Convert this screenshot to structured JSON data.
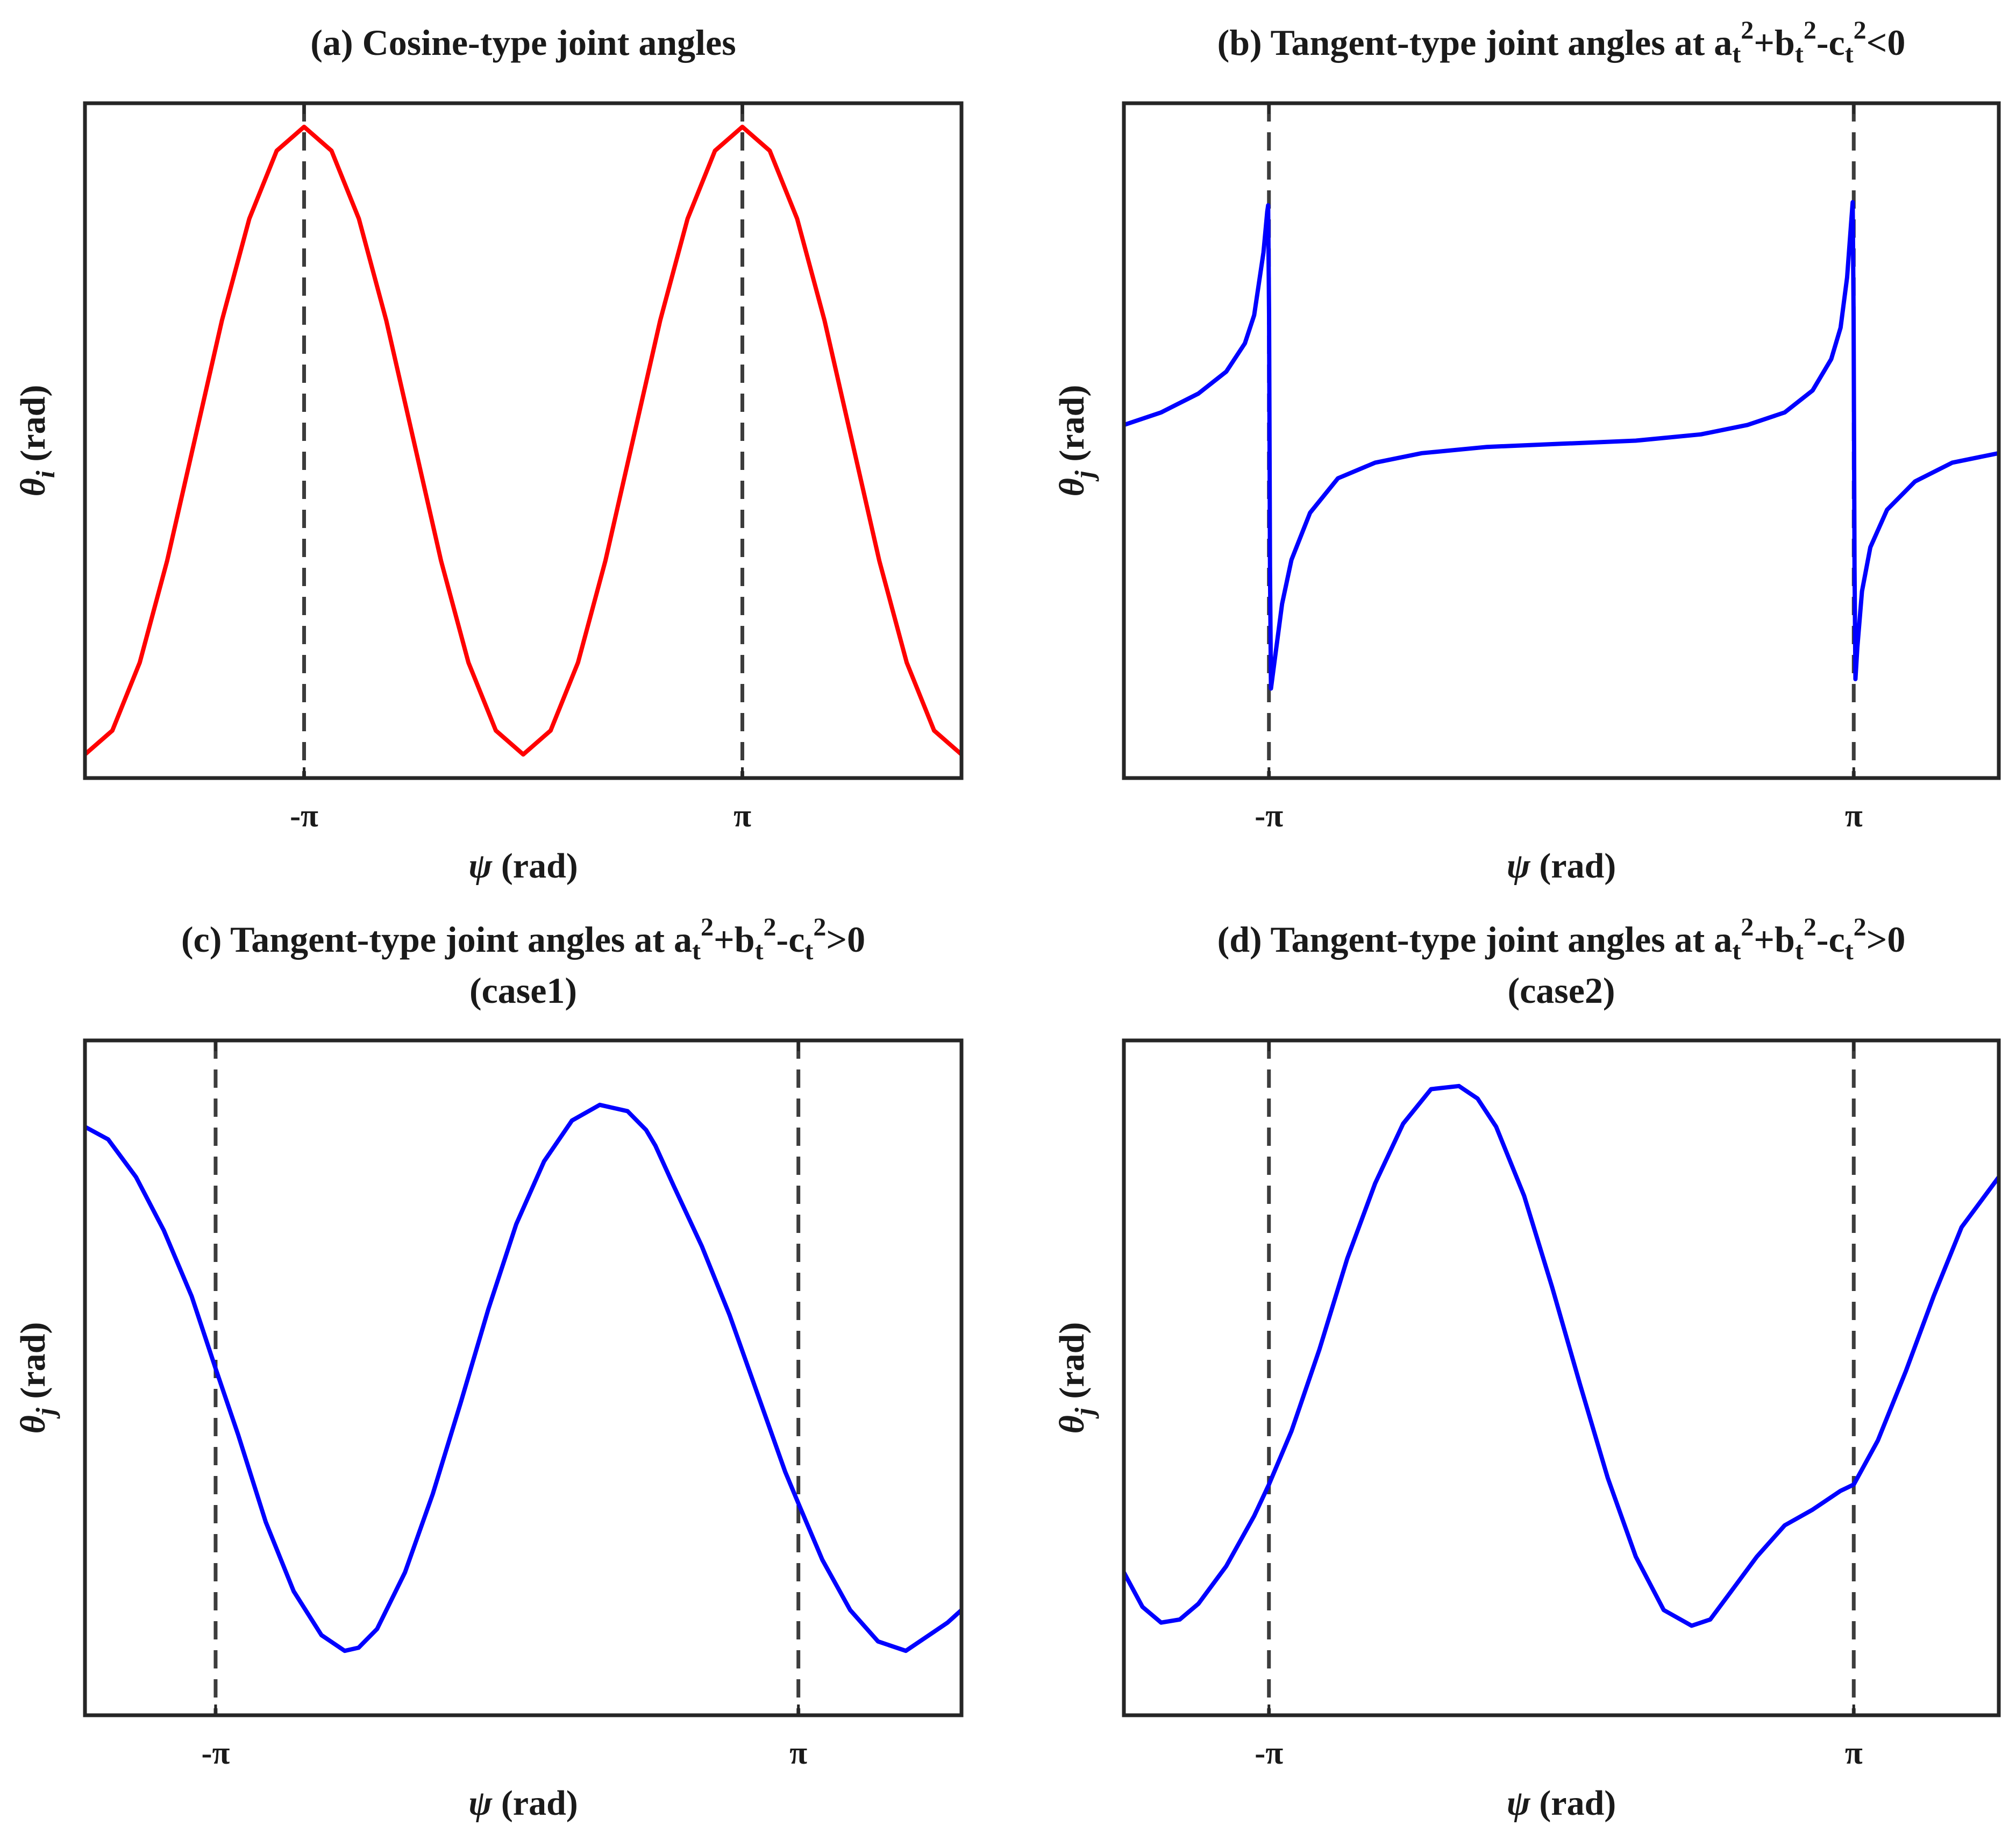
{
  "figure": {
    "background": "#ffffff",
    "frame_color": "#262626",
    "dash_color": "#3c3c3c"
  },
  "chart_data": [
    {
      "id": "a",
      "type": "line",
      "title": "(a) Cosine-type joint angles",
      "title_line2": "",
      "xlabel_symbol": "ψ",
      "xlabel_unit": " (rad)",
      "ylabel_symbol": "θ",
      "ylabel_sub": "i",
      "ylabel_unit": " (rad)",
      "x_ticks": [
        {
          "value": -3.1416,
          "label": "-π"
        },
        {
          "value": 3.1416,
          "label": "π"
        }
      ],
      "y_ticks": [],
      "xlim": [
        -6.2832,
        6.2832
      ],
      "ylim": [
        -1,
        1
      ],
      "grid": false,
      "legend": "none",
      "vlines": [
        -3.1416,
        3.1416
      ],
      "series": [
        {
          "color": "#ff0000",
          "x": [
            -6.2832,
            -5.8905,
            -5.4978,
            -5.1051,
            -4.7124,
            -4.3197,
            -3.927,
            -3.5343,
            -3.1416,
            -2.7489,
            -2.3562,
            -1.9635,
            -1.5708,
            -1.1781,
            -0.7854,
            -0.3927,
            0,
            0.3927,
            0.7854,
            1.1781,
            1.5708,
            1.9635,
            2.3562,
            2.7489,
            3.1416,
            3.5343,
            3.927,
            4.3197,
            4.7124,
            5.1051,
            5.4978,
            5.8905,
            6.2832
          ],
          "y": [
            -1,
            -0.924,
            -0.707,
            -0.383,
            0,
            0.383,
            0.707,
            0.924,
            1,
            0.924,
            0.707,
            0.383,
            0,
            -0.383,
            -0.707,
            -0.924,
            -1,
            -0.924,
            -0.707,
            -0.383,
            0,
            0.383,
            0.707,
            0.924,
            1,
            0.924,
            0.707,
            0.383,
            0,
            -0.383,
            -0.707,
            -0.924,
            -1
          ]
        }
      ]
    },
    {
      "id": "b",
      "type": "line",
      "title": "(b) Tangent-type joint angles at a",
      "title_parts": [
        "t",
        "2",
        "+b",
        "t",
        "2",
        "-c",
        "t",
        "2",
        "<0"
      ],
      "title_line2": "",
      "xlabel_symbol": "ψ",
      "xlabel_unit": " (rad)",
      "ylabel_symbol": "θ",
      "ylabel_sub": "j",
      "ylabel_unit": " (rad)",
      "x_ticks": [
        {
          "value": -3.1416,
          "label": "-π"
        },
        {
          "value": 3.1416,
          "label": "π"
        }
      ],
      "y_ticks": [],
      "xlim": [
        -4.7,
        4.7
      ],
      "ylim": [
        -1,
        1
      ],
      "grid": false,
      "legend": "none",
      "vlines": [
        -3.1416,
        3.1416
      ],
      "series": [
        {
          "color": "#0000ff",
          "x": [
            -4.7,
            -4.3,
            -3.9,
            -3.6,
            -3.4,
            -3.3,
            -3.2,
            -3.16,
            -3.15,
            -3.14,
            -3.13,
            -3.12,
            -3.08,
            -3.0,
            -2.9,
            -2.7,
            -2.4,
            -2.0,
            -1.5,
            -0.8,
            0,
            0.8,
            1.5,
            2.0,
            2.4,
            2.7,
            2.9,
            3.0,
            3.07,
            3.11,
            3.13,
            3.14,
            3.15,
            3.16,
            3.18,
            3.23,
            3.32,
            3.5,
            3.8,
            4.2,
            4.7
          ],
          "y": [
            0.05,
            0.09,
            0.15,
            0.22,
            0.31,
            0.4,
            0.6,
            0.73,
            0.75,
            0.4,
            -0.4,
            -0.79,
            -0.7,
            -0.52,
            -0.38,
            -0.23,
            -0.12,
            -0.07,
            -0.04,
            -0.02,
            -0.01,
            0.0,
            0.02,
            0.05,
            0.09,
            0.16,
            0.26,
            0.36,
            0.52,
            0.68,
            0.76,
            0.4,
            -0.4,
            -0.76,
            -0.66,
            -0.48,
            -0.34,
            -0.22,
            -0.13,
            -0.07,
            -0.04
          ]
        }
      ]
    },
    {
      "id": "c",
      "type": "line",
      "title": "(c) Tangent-type joint angles at a",
      "title_parts": [
        "t",
        "2",
        "+b",
        "t",
        "2",
        "-c",
        "t",
        "2",
        ">0"
      ],
      "title_line2": "(case1)",
      "xlabel_symbol": "ψ",
      "xlabel_unit": " (rad)",
      "ylabel_symbol": "θ",
      "ylabel_sub": "j",
      "ylabel_unit": " (rad)",
      "x_ticks": [
        {
          "value": -3.1416,
          "label": "-π"
        },
        {
          "value": 3.1416,
          "label": "π"
        }
      ],
      "y_ticks": [],
      "xlim": [
        -4.55,
        4.9
      ],
      "ylim": [
        -1,
        1
      ],
      "grid": false,
      "legend": "none",
      "vlines": [
        -3.1416,
        3.1416
      ],
      "series": [
        {
          "color": "#0000ff",
          "x": [
            -4.55,
            -4.3,
            -4.0,
            -3.7,
            -3.4,
            -3.1416,
            -2.9,
            -2.6,
            -2.3,
            -2.0,
            -1.75,
            -1.6,
            -1.4,
            -1.1,
            -0.8,
            -0.5,
            -0.2,
            0.1,
            0.4,
            0.7,
            1.0,
            1.3,
            1.5,
            1.6,
            1.8,
            2.1,
            2.4,
            2.7,
            3.0,
            3.1416,
            3.4,
            3.7,
            4.0,
            4.3,
            4.6,
            4.75,
            4.9
          ],
          "y": [
            0.8,
            0.76,
            0.64,
            0.47,
            0.26,
            0.03,
            -0.18,
            -0.46,
            -0.68,
            -0.82,
            -0.87,
            -0.86,
            -0.8,
            -0.62,
            -0.37,
            -0.08,
            0.22,
            0.49,
            0.69,
            0.82,
            0.87,
            0.85,
            0.79,
            0.74,
            0.61,
            0.42,
            0.2,
            -0.05,
            -0.3,
            -0.4,
            -0.58,
            -0.74,
            -0.84,
            -0.87,
            -0.81,
            -0.78,
            -0.74
          ]
        }
      ]
    },
    {
      "id": "d",
      "type": "line",
      "title": "(d) Tangent-type joint angles at a",
      "title_parts": [
        "t",
        "2",
        "+b",
        "t",
        "2",
        "-c",
        "t",
        "2",
        ">0"
      ],
      "title_line2": "(case2)",
      "xlabel_symbol": "ψ",
      "xlabel_unit": " (rad)",
      "ylabel_symbol": "θ",
      "ylabel_sub": "j",
      "ylabel_unit": " (rad)",
      "x_ticks": [
        {
          "value": -3.1416,
          "label": "-π"
        },
        {
          "value": 3.1416,
          "label": "π"
        }
      ],
      "y_ticks": [],
      "xlim": [
        -4.7,
        4.7
      ],
      "ylim": [
        -1,
        1
      ],
      "grid": false,
      "legend": "none",
      "vlines": [
        -3.1416,
        3.1416
      ],
      "series": [
        {
          "color": "#0000ff",
          "x": [
            -4.7,
            -4.5,
            -4.3,
            -4.1,
            -3.9,
            -3.6,
            -3.3,
            -3.1416,
            -2.9,
            -2.6,
            -2.3,
            -2.0,
            -1.7,
            -1.4,
            -1.1,
            -0.9,
            -0.7,
            -0.4,
            -0.1,
            0.2,
            0.5,
            0.8,
            1.1,
            1.4,
            1.6,
            1.8,
            2.1,
            2.4,
            2.7,
            3.0,
            3.1416,
            3.4,
            3.7,
            4.0,
            4.3,
            4.7
          ],
          "y": [
            -0.62,
            -0.73,
            -0.78,
            -0.77,
            -0.72,
            -0.6,
            -0.44,
            -0.34,
            -0.17,
            0.09,
            0.38,
            0.62,
            0.81,
            0.92,
            0.93,
            0.89,
            0.8,
            0.58,
            0.29,
            -0.02,
            -0.32,
            -0.57,
            -0.74,
            -0.79,
            -0.77,
            -0.69,
            -0.57,
            -0.47,
            -0.42,
            -0.36,
            -0.34,
            -0.2,
            0.02,
            0.26,
            0.48,
            0.64
          ]
        }
      ]
    }
  ]
}
